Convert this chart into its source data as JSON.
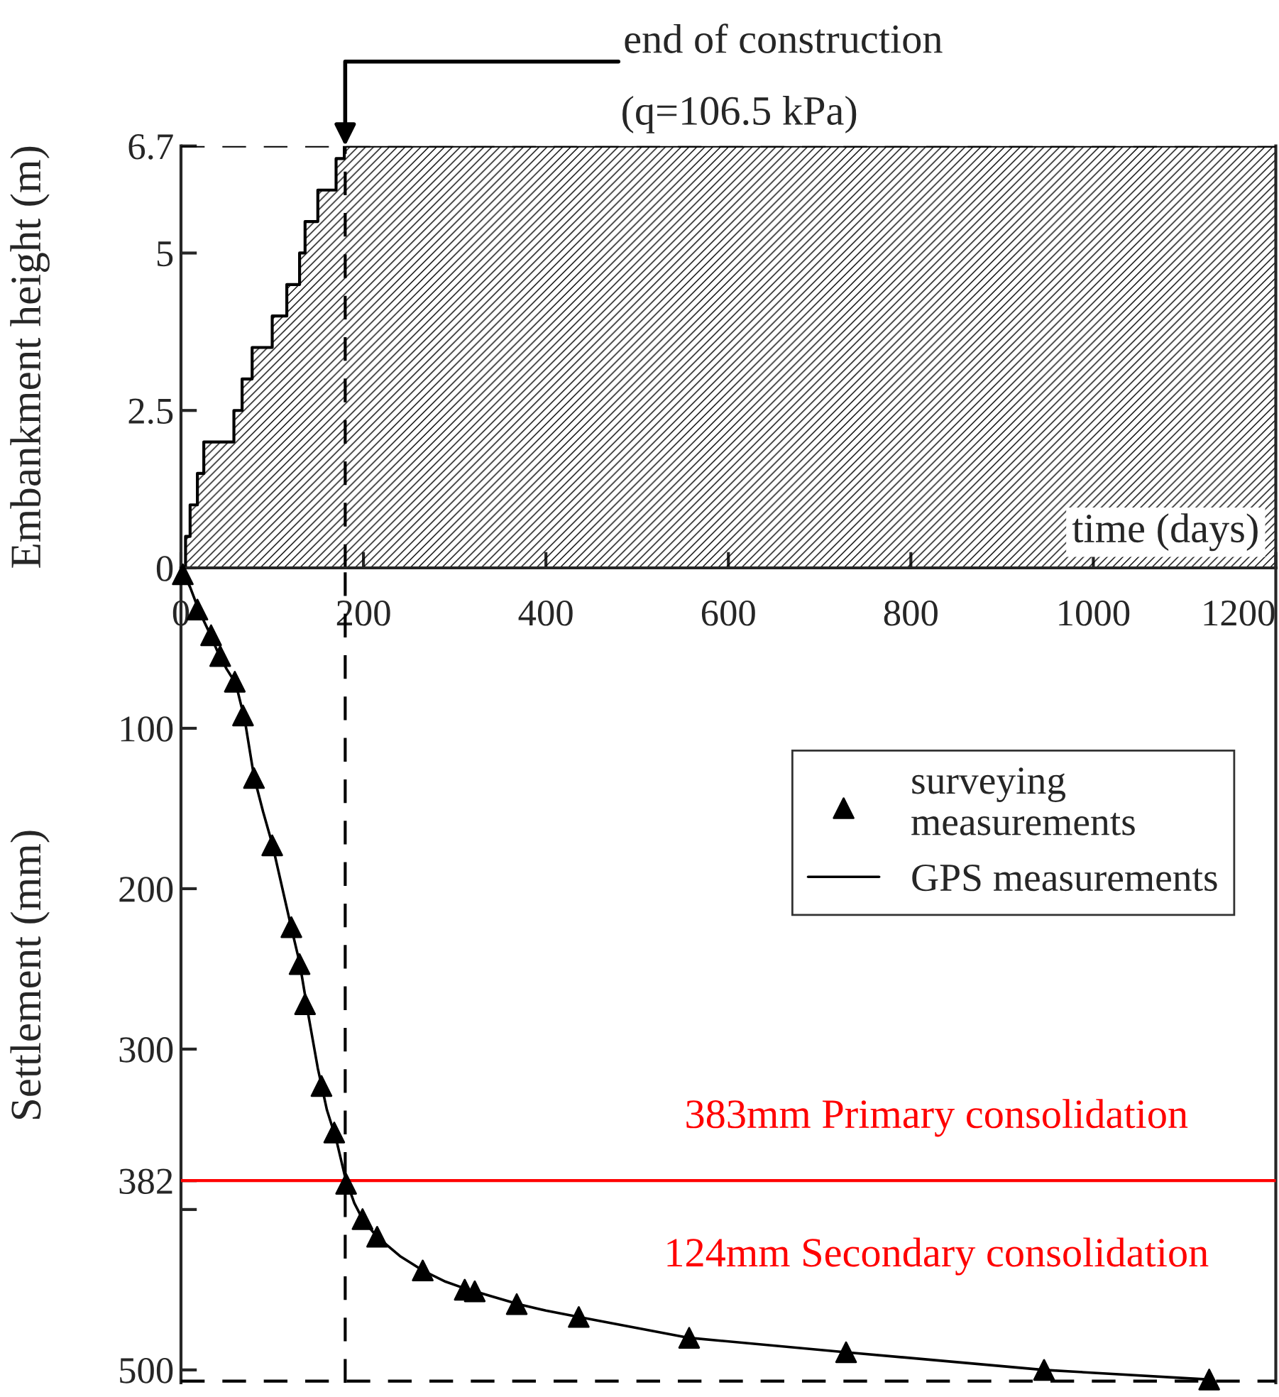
{
  "chart_data": [
    {
      "type": "step",
      "ylabel": "Embankment height (m)",
      "xlabel": "time (days)",
      "xlim": [
        0,
        1200
      ],
      "xticks": [
        0,
        200,
        400,
        600,
        800,
        1000,
        1200
      ],
      "ylim": [
        0,
        6.7
      ],
      "yticks": [
        0,
        2.5,
        5,
        6.7
      ],
      "series": [
        {
          "color": "#000000",
          "x": [
            0,
            5,
            10,
            18,
            25,
            58,
            67,
            78,
            100,
            116,
            130,
            136,
            150,
            170,
            179,
            1200
          ],
          "values": [
            0,
            0.5,
            1.0,
            1.5,
            2.0,
            2.5,
            3.0,
            3.5,
            4.0,
            4.5,
            5.0,
            5.5,
            6.0,
            6.5,
            6.7,
            6.7
          ]
        }
      ],
      "ref_lines": [
        {
          "axis": "x",
          "value": 180,
          "color": "#000000",
          "line_style": "dashed"
        },
        {
          "axis": "y",
          "value": 6.7,
          "color": "#000000",
          "line_style": "dashed"
        }
      ],
      "annotations": [
        {
          "text": "end of construction",
          "x": 180,
          "y": 6.7
        },
        "(q=106.5 kPa)"
      ],
      "grid": false
    },
    {
      "type": "line",
      "ylabel": "Settlement (mm)",
      "tick_labels": "y",
      "xlim": [
        0,
        1200
      ],
      "ylim": [
        508,
        0
      ],
      "yticks": [
        100,
        200,
        300,
        382,
        {
          "value": 400,
          "label": null
        },
        500
      ],
      "series": [
        {
          "name": "surveying\nmeasurements",
          "type": "scatter",
          "marker": "triangle",
          "color": "#000000",
          "x": [
            2,
            18,
            33,
            43,
            59,
            68,
            80,
            100,
            121,
            130,
            136,
            154,
            168,
            181,
            199,
            215,
            265,
            311,
            322,
            368,
            436,
            557,
            729,
            946,
            1127
          ],
          "values": [
            4,
            26,
            42,
            55,
            71,
            92,
            131,
            173,
            224,
            247,
            272,
            323,
            352,
            384,
            406,
            417,
            438,
            450,
            451,
            459,
            467,
            480,
            489,
            500,
            506
          ]
        },
        {
          "name": "GPS measurements",
          "marker": "none",
          "line_style": "solid",
          "color": "#000000",
          "x": [
            0,
            10,
            20,
            30,
            40,
            50,
            60,
            70,
            80,
            90,
            100,
            120,
            130,
            140,
            150,
            160,
            170,
            180,
            190,
            200,
            215,
            240,
            265,
            290,
            310,
            340,
            370,
            400,
            436,
            557,
            729,
            946,
            1127
          ],
          "values": [
            0,
            12,
            27,
            39,
            52,
            63,
            72,
            95,
            130,
            152,
            172,
            222,
            246,
            280,
            312,
            338,
            356,
            380,
            396,
            407,
            417,
            429,
            438,
            445,
            449,
            454,
            459,
            463,
            467,
            480,
            489,
            500,
            506
          ]
        }
      ],
      "ref_lines": [
        {
          "axis": "x",
          "value": 180,
          "color": "#000000",
          "line_style": "dashed"
        },
        {
          "axis": "y",
          "value": 382,
          "color": "#ff0000",
          "line_style": "solid"
        },
        {
          "axis": "y",
          "value": 507,
          "color": "#000000",
          "line_style": "dashed"
        }
      ],
      "annotations": [
        "383mm Primary consolidation",
        "124mm Secondary consolidation"
      ],
      "grid": false,
      "legend": "top right"
    }
  ]
}
